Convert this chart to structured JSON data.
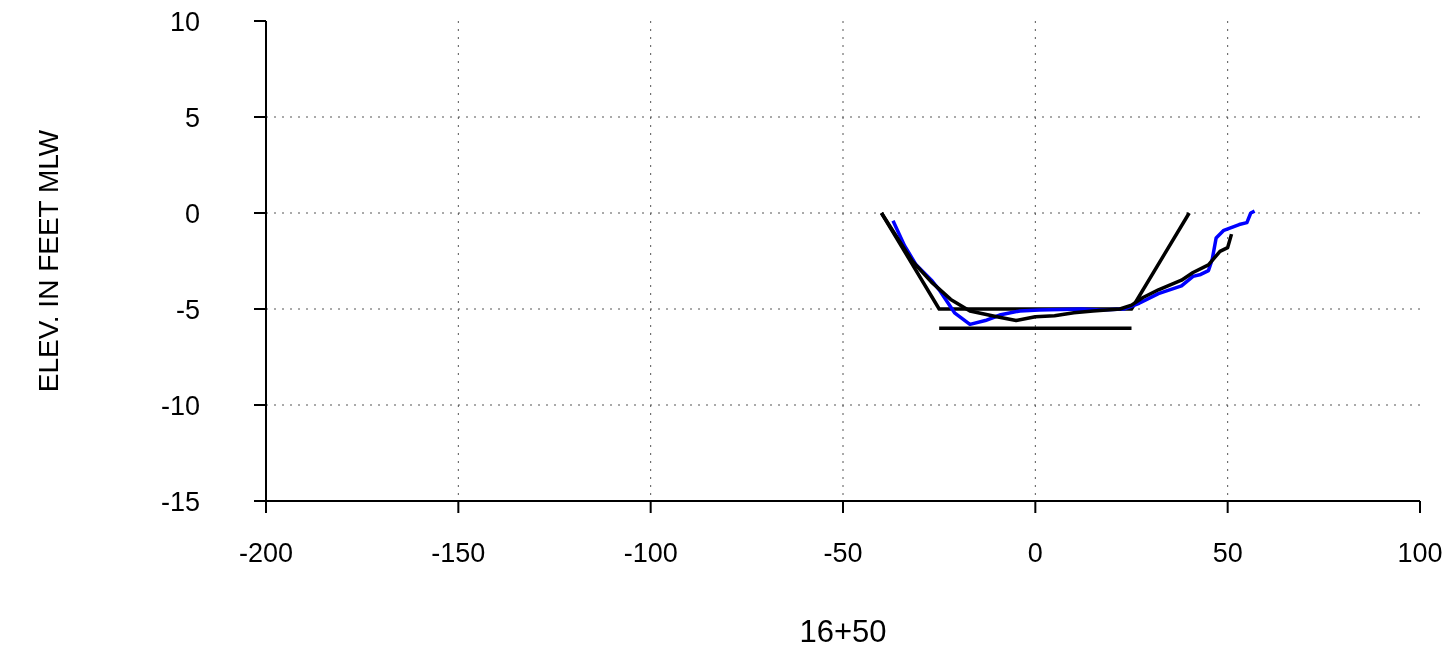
{
  "chart_data": {
    "type": "line",
    "xlabel": "16+50",
    "ylabel": "ELEV. IN FEET MLW",
    "xlim": [
      -200,
      100
    ],
    "xticks": [
      -200,
      -150,
      -100,
      -50,
      0,
      50,
      100
    ],
    "ylim": [
      -15,
      10
    ],
    "yticks": [
      -15,
      -10,
      -5,
      0,
      5,
      10
    ],
    "grid": true,
    "legend": false,
    "marker": "none",
    "line_style": "solid",
    "series": [
      {
        "color": "#000000",
        "x": [
          -40,
          -25,
          25,
          40
        ],
        "values": [
          0,
          -5,
          -5,
          0
        ]
      },
      {
        "color": "#000000",
        "x": [
          -25,
          25
        ],
        "values": [
          -6,
          -6
        ]
      },
      {
        "color": "#0000ff",
        "x": [
          -37,
          -34,
          -31,
          -27,
          -25,
          -21,
          -17,
          -13,
          -9,
          -4,
          1,
          12,
          17,
          23,
          27,
          32,
          38,
          41,
          43,
          45,
          46,
          47,
          49,
          53,
          55,
          56,
          57
        ],
        "values": [
          -0.4,
          -1.7,
          -2.7,
          -3.5,
          -4.0,
          -5.2,
          -5.8,
          -5.6,
          -5.3,
          -5.1,
          -5.05,
          -5.0,
          -5.05,
          -5.0,
          -4.7,
          -4.2,
          -3.8,
          -3.3,
          -3.2,
          -3.0,
          -2.4,
          -1.3,
          -0.9,
          -0.6,
          -0.5,
          0,
          0.1
        ]
      },
      {
        "color": "#000000",
        "x": [
          -40,
          -32,
          -27,
          -22,
          -17,
          -10,
          -5,
          0,
          5,
          10,
          15,
          22,
          25,
          28,
          32,
          38,
          41,
          45,
          48,
          50,
          51
        ],
        "values": [
          0,
          -2.5,
          -3.6,
          -4.5,
          -5.1,
          -5.4,
          -5.6,
          -5.4,
          -5.35,
          -5.2,
          -5.1,
          -5.0,
          -4.8,
          -4.4,
          -4.0,
          -3.5,
          -3.1,
          -2.7,
          -2.0,
          -1.8,
          -1.1
        ]
      }
    ]
  }
}
